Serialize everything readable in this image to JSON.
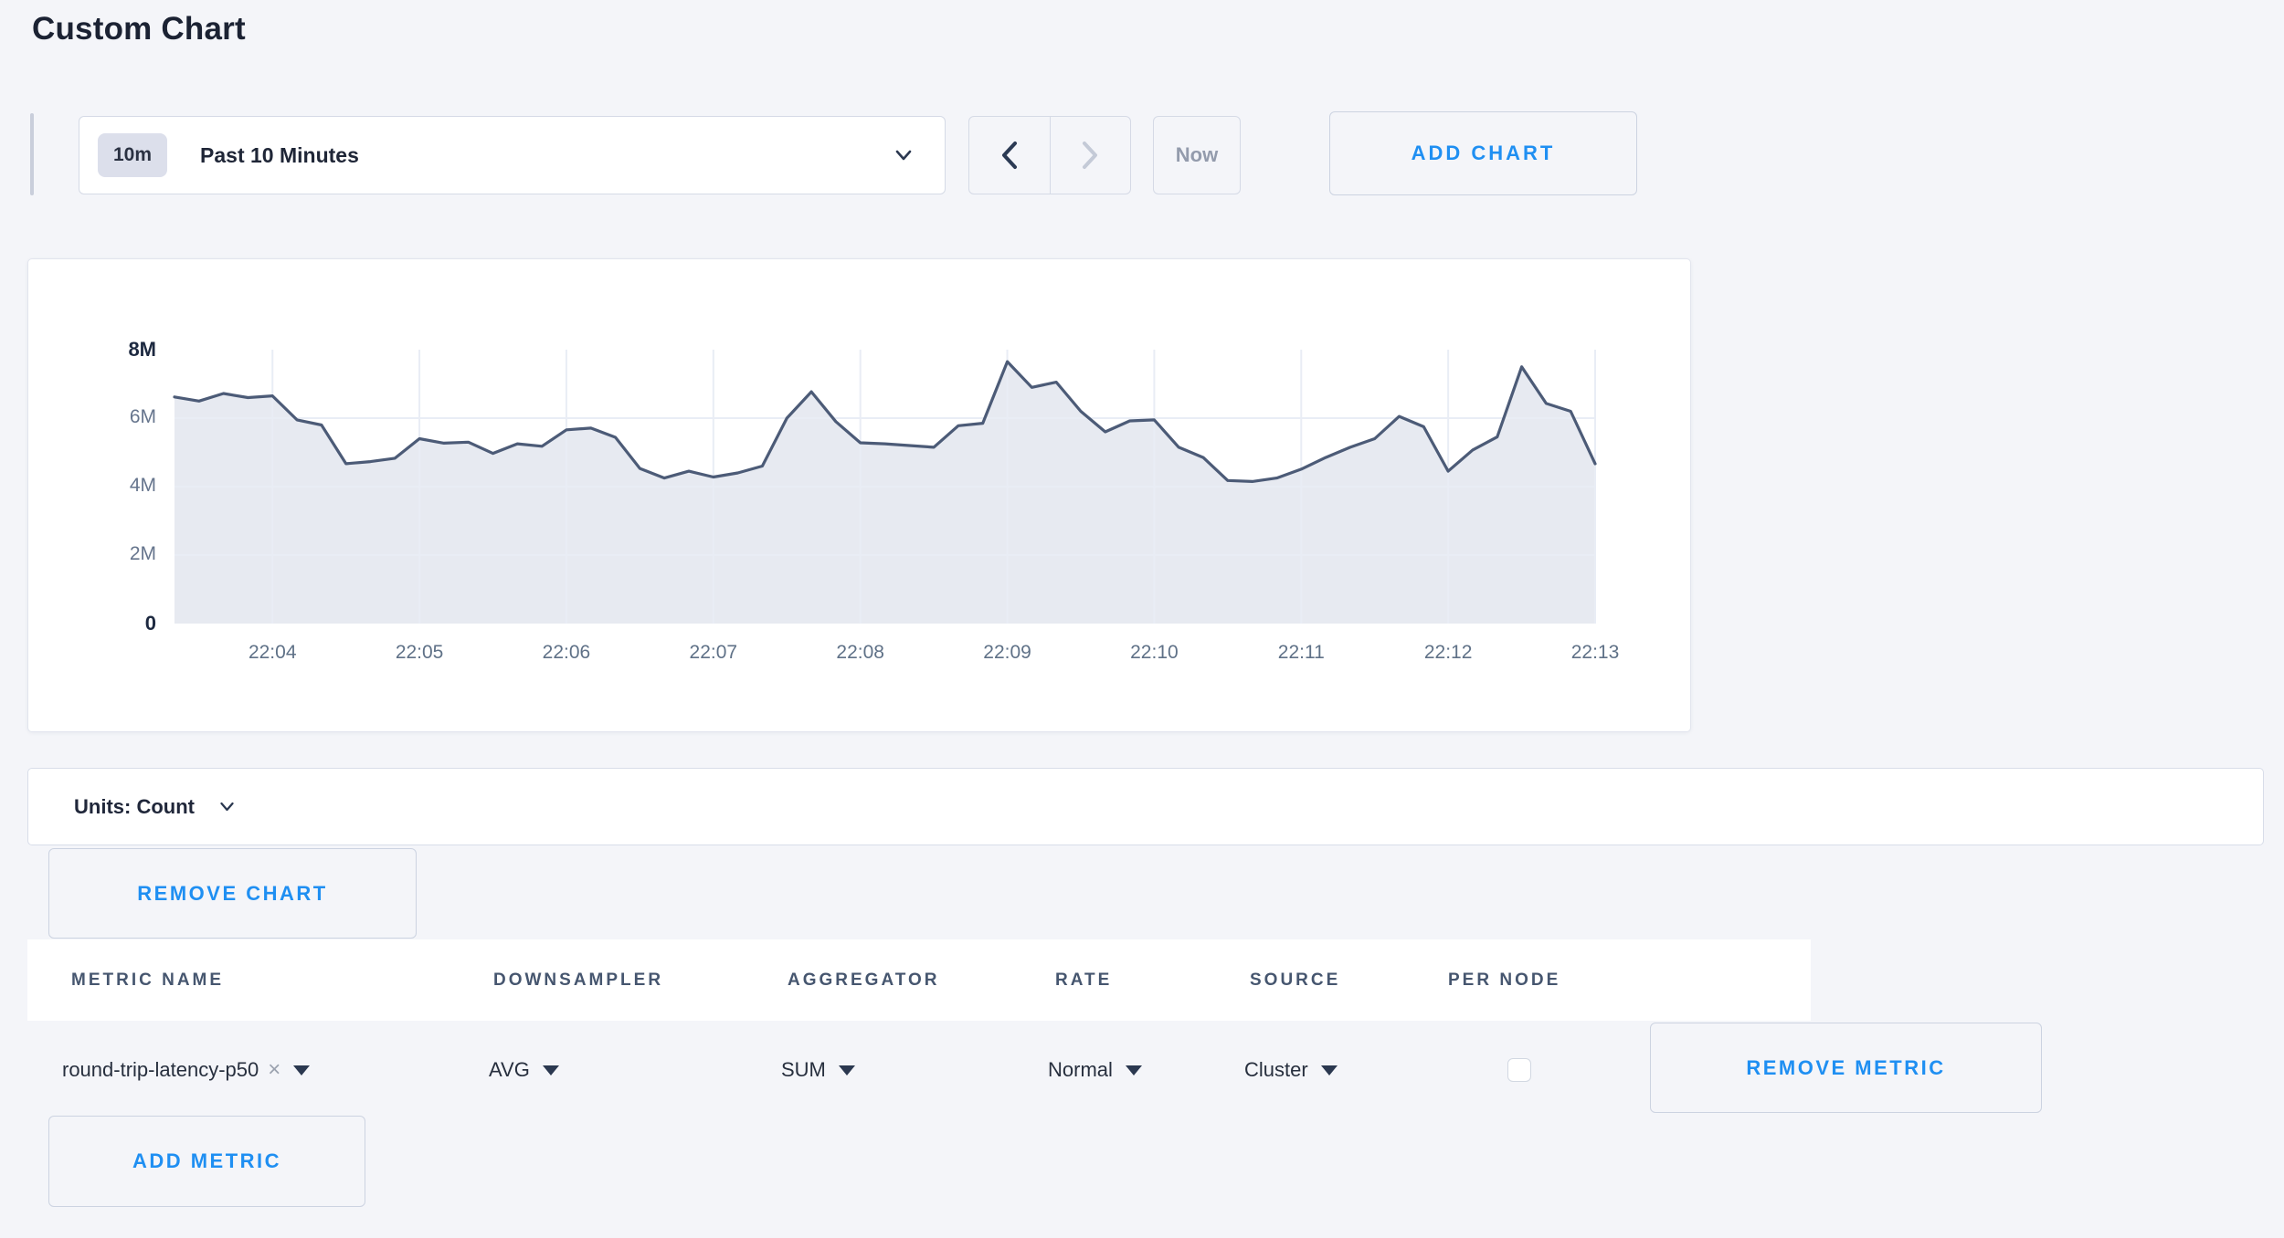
{
  "page": {
    "title": "Custom Chart",
    "background_color": "#f4f5f9",
    "accent_blue": "#1f8ff2"
  },
  "toolbar": {
    "time_window_badge": "10m",
    "time_window_label": "Past 10 Minutes",
    "now_label": "Now",
    "add_chart_label": "ADD CHART"
  },
  "chart_data": {
    "type": "area",
    "title": "",
    "ylabel": "count",
    "start_time": "22:03:20",
    "end_time": "22:13:00",
    "interval_seconds": 10,
    "ylim": [
      0,
      8000000
    ],
    "grid": true,
    "legend": "none",
    "line_color": "#4c5b77",
    "fill_color": "#e7eaf1",
    "grid_color": "#e9edf5",
    "y_ticks": [
      {
        "label": "8M",
        "value": 8,
        "bold": true
      },
      {
        "label": "6M",
        "value": 6,
        "bold": false
      },
      {
        "label": "4M",
        "value": 4,
        "bold": false
      },
      {
        "label": "2M",
        "value": 2,
        "bold": false
      },
      {
        "label": "0",
        "value": 0,
        "bold": true
      }
    ],
    "x_tick_labels": [
      "22:04",
      "22:05",
      "22:06",
      "22:07",
      "22:08",
      "22:09",
      "22:10",
      "22:11",
      "22:12",
      "22:13"
    ],
    "x_tick_indices": [
      4,
      10,
      16,
      22,
      28,
      34,
      40,
      46,
      52,
      58
    ],
    "values_millions": [
      6.62,
      6.5,
      6.72,
      6.6,
      6.65,
      5.95,
      5.8,
      4.67,
      4.73,
      4.83,
      5.4,
      5.27,
      5.3,
      4.97,
      5.25,
      5.18,
      5.66,
      5.71,
      5.44,
      4.53,
      4.25,
      4.45,
      4.28,
      4.4,
      4.6,
      6.0,
      6.77,
      5.9,
      5.28,
      5.25,
      5.2,
      5.15,
      5.78,
      5.85,
      7.65,
      6.9,
      7.05,
      6.2,
      5.6,
      5.92,
      5.95,
      5.15,
      4.85,
      4.18,
      4.15,
      4.25,
      4.51,
      4.85,
      5.15,
      5.4,
      6.05,
      5.75,
      4.45,
      5.07,
      5.45,
      7.5,
      6.43,
      6.2,
      4.67
    ]
  },
  "units_bar": {
    "label": "Units: Count"
  },
  "chart_actions": {
    "remove_chart_label": "REMOVE CHART"
  },
  "metrics_table": {
    "headers": {
      "metric_name": "METRIC NAME",
      "downsampler": "DOWNSAMPLER",
      "aggregator": "AGGREGATOR",
      "rate": "RATE",
      "source": "SOURCE",
      "per_node": "PER NODE"
    },
    "rows": [
      {
        "metric_name": "round-trip-latency-p50",
        "clear_icon": "×",
        "downsampler": "AVG",
        "aggregator": "SUM",
        "rate": "Normal",
        "source": "Cluster",
        "per_node_checked": false,
        "remove_label": "REMOVE METRIC"
      }
    ],
    "add_metric_label": "ADD METRIC"
  }
}
